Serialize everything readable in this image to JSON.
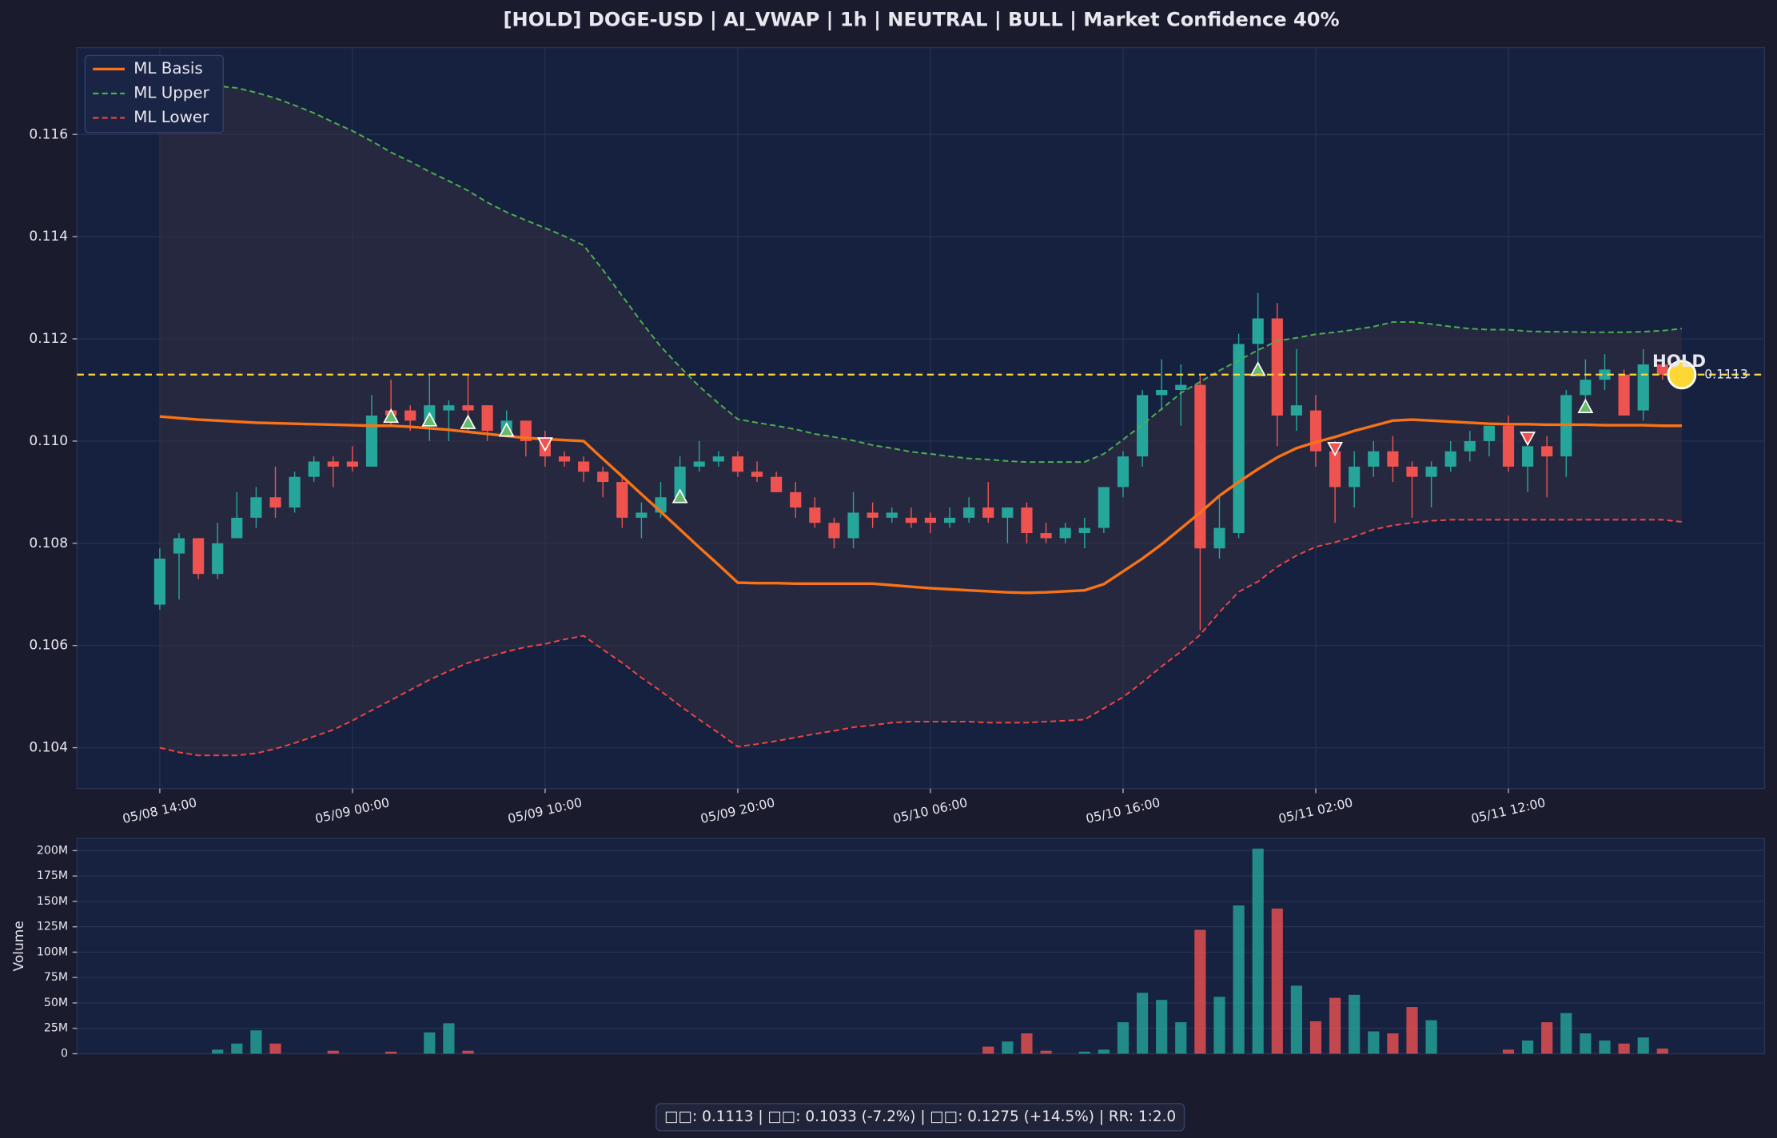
{
  "chart_data": [
    {
      "type": "candlestick",
      "title": "[HOLD] DOGE-USD  |  AI_VWAP | 1h  |  NEUTRAL | BULL  |  Market Confidence 40%",
      "x": [
        "05/08 14:00",
        "05/08 15:00",
        "05/08 16:00",
        "05/08 17:00",
        "05/08 18:00",
        "05/08 19:00",
        "05/08 20:00",
        "05/08 21:00",
        "05/08 22:00",
        "05/08 23:00",
        "05/09 00:00",
        "05/09 01:00",
        "05/09 02:00",
        "05/09 03:00",
        "05/09 04:00",
        "05/09 05:00",
        "05/09 06:00",
        "05/09 07:00",
        "05/09 08:00",
        "05/09 09:00",
        "05/09 10:00",
        "05/09 11:00",
        "05/09 12:00",
        "05/09 13:00",
        "05/09 14:00",
        "05/09 15:00",
        "05/09 16:00",
        "05/09 17:00",
        "05/09 18:00",
        "05/09 19:00",
        "05/09 20:00",
        "05/09 21:00",
        "05/09 22:00",
        "05/09 23:00",
        "05/10 00:00",
        "05/10 01:00",
        "05/10 02:00",
        "05/10 03:00",
        "05/10 04:00",
        "05/10 05:00",
        "05/10 06:00",
        "05/10 07:00",
        "05/10 08:00",
        "05/10 09:00",
        "05/10 10:00",
        "05/10 11:00",
        "05/10 12:00",
        "05/10 13:00",
        "05/10 14:00",
        "05/10 15:00",
        "05/10 16:00",
        "05/10 17:00",
        "05/10 18:00",
        "05/10 19:00",
        "05/10 20:00",
        "05/10 21:00",
        "05/10 22:00",
        "05/10 23:00",
        "05/11 00:00",
        "05/11 01:00",
        "05/11 02:00",
        "05/11 03:00",
        "05/11 04:00",
        "05/11 05:00",
        "05/11 06:00",
        "05/11 07:00",
        "05/11 08:00",
        "05/11 09:00",
        "05/11 10:00",
        "05/11 11:00",
        "05/11 12:00",
        "05/11 13:00",
        "05/11 14:00",
        "05/11 15:00",
        "05/11 16:00",
        "05/11 17:00",
        "05/11 18:00",
        "05/11 19:00",
        "05/11 20:00",
        "05/11 21:00"
      ],
      "open": [
        0.1068,
        0.1078,
        0.1081,
        0.1074,
        0.1081,
        0.1085,
        0.1089,
        0.1087,
        0.1093,
        0.1096,
        0.1096,
        0.1095,
        0.1106,
        0.1106,
        0.1104,
        0.1106,
        0.1107,
        0.1107,
        0.1102,
        0.1104,
        0.11,
        0.1097,
        0.1096,
        0.1094,
        0.1092,
        0.1085,
        0.1086,
        0.1089,
        0.1095,
        0.1096,
        0.1097,
        0.1094,
        0.1093,
        0.109,
        0.1087,
        0.1084,
        0.1081,
        0.1086,
        0.1085,
        0.1085,
        0.1085,
        0.1084,
        0.1085,
        0.1087,
        0.1085,
        0.1087,
        0.1082,
        0.1081,
        0.1082,
        0.1083,
        0.1091,
        0.1097,
        0.1109,
        0.111,
        0.1111,
        0.1079,
        0.1082,
        0.1119,
        0.1124,
        0.1105,
        0.1106,
        0.1098,
        0.1091,
        0.1095,
        0.1098,
        0.1095,
        0.1093,
        0.1095,
        0.1098,
        0.11,
        0.1103,
        0.1095,
        0.1099,
        0.1097,
        0.1109,
        0.1112,
        0.1113,
        0.1106,
        0.1115,
        0.1113
      ],
      "high": [
        0.1079,
        0.1082,
        0.1081,
        0.1084,
        0.109,
        0.1091,
        0.1095,
        0.1094,
        0.1097,
        0.1097,
        0.1099,
        0.1109,
        0.1112,
        0.1107,
        0.1113,
        0.1108,
        0.1113,
        0.1107,
        0.1106,
        0.1104,
        0.1102,
        0.1098,
        0.1097,
        0.1095,
        0.1093,
        0.1088,
        0.1092,
        0.1097,
        0.11,
        0.1098,
        0.1098,
        0.1096,
        0.1094,
        0.1092,
        0.1089,
        0.1085,
        0.109,
        0.1088,
        0.1087,
        0.1087,
        0.1086,
        0.1087,
        0.1089,
        0.1092,
        0.1087,
        0.1088,
        0.1084,
        0.1084,
        0.1085,
        0.1091,
        0.1098,
        0.111,
        0.1116,
        0.1115,
        0.1113,
        0.1089,
        0.1121,
        0.1129,
        0.1127,
        0.1118,
        0.1109,
        0.11,
        0.1098,
        0.11,
        0.1101,
        0.1096,
        0.1096,
        0.11,
        0.1102,
        0.1103,
        0.1105,
        0.1099,
        0.1101,
        0.111,
        0.1116,
        0.1117,
        0.1114,
        0.1118,
        0.1116,
        0.1114
      ],
      "low": [
        0.1067,
        0.1069,
        0.1073,
        0.1073,
        0.1081,
        0.1083,
        0.1085,
        0.1086,
        0.1092,
        0.1091,
        0.1094,
        0.1095,
        0.1103,
        0.1102,
        0.11,
        0.11,
        0.1102,
        0.11,
        0.1101,
        0.1097,
        0.1095,
        0.1095,
        0.1092,
        0.1089,
        0.1083,
        0.1081,
        0.1085,
        0.1088,
        0.1094,
        0.1095,
        0.1093,
        0.1092,
        0.109,
        0.1085,
        0.1083,
        0.1079,
        0.1079,
        0.1083,
        0.1084,
        0.1083,
        0.1082,
        0.1083,
        0.1084,
        0.1084,
        0.108,
        0.108,
        0.108,
        0.108,
        0.1079,
        0.1082,
        0.1089,
        0.1095,
        0.1106,
        0.1103,
        0.1063,
        0.1077,
        0.1081,
        0.1115,
        0.1099,
        0.1102,
        0.1095,
        0.1084,
        0.1087,
        0.1093,
        0.1092,
        0.1085,
        0.1087,
        0.1094,
        0.1096,
        0.1097,
        0.1094,
        0.109,
        0.1089,
        0.1093,
        0.1106,
        0.111,
        0.1105,
        0.1104,
        0.1112,
        0.1112
      ],
      "close": [
        0.1077,
        0.1081,
        0.1074,
        0.108,
        0.1085,
        0.1089,
        0.1087,
        0.1093,
        0.1096,
        0.1095,
        0.1095,
        0.1105,
        0.1105,
        0.1104,
        0.1107,
        0.1107,
        0.1106,
        0.1102,
        0.1104,
        0.11,
        0.1097,
        0.1096,
        0.1094,
        0.1092,
        0.1085,
        0.1086,
        0.1089,
        0.1095,
        0.1096,
        0.1097,
        0.1094,
        0.1093,
        0.109,
        0.1087,
        0.1084,
        0.1081,
        0.1086,
        0.1085,
        0.1086,
        0.1084,
        0.1084,
        0.1085,
        0.1087,
        0.1085,
        0.1087,
        0.1082,
        0.1081,
        0.1083,
        0.1083,
        0.1091,
        0.1097,
        0.1109,
        0.111,
        0.1111,
        0.1079,
        0.1083,
        0.1119,
        0.1124,
        0.1105,
        0.1107,
        0.1098,
        0.1091,
        0.1095,
        0.1098,
        0.1095,
        0.1093,
        0.1095,
        0.1098,
        0.11,
        0.1103,
        0.1095,
        0.1099,
        0.1097,
        0.1109,
        0.1112,
        0.1114,
        0.1105,
        0.1115,
        0.1113,
        0.1113
      ],
      "up_color": "#26a69a",
      "down_color": "#ef5350",
      "series": [
        {
          "name": "ML Basis",
          "color": "#f97316",
          "dash": false,
          "values": [
            0.11048,
            0.11045,
            0.11042,
            0.1104,
            0.11038,
            0.11036,
            0.11035,
            0.11034,
            0.11033,
            0.11032,
            0.11031,
            0.1103,
            0.1103,
            0.11028,
            0.11025,
            0.11022,
            0.11018,
            0.11014,
            0.1101,
            0.11006,
            0.11004,
            0.11002,
            0.11,
            0.10965,
            0.10931,
            0.10896,
            0.10862,
            0.10827,
            0.10792,
            0.10758,
            0.10723,
            0.10722,
            0.10722,
            0.10721,
            0.10721,
            0.10721,
            0.10721,
            0.10721,
            0.10718,
            0.10715,
            0.10712,
            0.1071,
            0.10708,
            0.10706,
            0.10704,
            0.10703,
            0.10704,
            0.10706,
            0.10708,
            0.1072,
            0.10745,
            0.1077,
            0.10798,
            0.10829,
            0.1086,
            0.10893,
            0.1092,
            0.10945,
            0.10968,
            0.10986,
            0.10998,
            0.11008,
            0.1102,
            0.1103,
            0.1104,
            0.11042,
            0.1104,
            0.11038,
            0.11036,
            0.11034,
            0.11033,
            0.11033,
            0.11032,
            0.11032,
            0.11032,
            0.11031,
            0.11031,
            0.11031,
            0.1103,
            0.1103
          ]
        },
        {
          "name": "ML Upper",
          "color": "#4caf50",
          "dash": true,
          "values": [
            0.11704,
            0.11704,
            0.11699,
            0.11695,
            0.11691,
            0.11682,
            0.11671,
            0.11657,
            0.11642,
            0.11624,
            0.11607,
            0.11587,
            0.11565,
            0.11547,
            0.11527,
            0.11509,
            0.1149,
            0.11467,
            0.11448,
            0.11432,
            0.11417,
            0.11401,
            0.11383,
            0.11335,
            0.11284,
            0.11233,
            0.11185,
            0.11145,
            0.11107,
            0.11074,
            0.11043,
            0.11036,
            0.1103,
            0.11023,
            0.11014,
            0.11008,
            0.11001,
            0.10992,
            0.10986,
            0.10979,
            0.10975,
            0.1097,
            0.10966,
            0.10964,
            0.10961,
            0.10959,
            0.10959,
            0.10959,
            0.10959,
            0.10975,
            0.11003,
            0.11032,
            0.11063,
            0.11094,
            0.11116,
            0.11138,
            0.11158,
            0.11178,
            0.11196,
            0.11202,
            0.11209,
            0.11213,
            0.11218,
            0.11224,
            0.11233,
            0.11233,
            0.11229,
            0.11224,
            0.1122,
            0.11218,
            0.11218,
            0.11215,
            0.11214,
            0.11214,
            0.11213,
            0.11213,
            0.11213,
            0.11214,
            0.11216,
            0.1122
          ]
        },
        {
          "name": "ML Lower",
          "color": "#ef4444",
          "dash": true,
          "values": [
            0.104,
            0.10391,
            0.10385,
            0.10385,
            0.10385,
            0.10389,
            0.10398,
            0.10409,
            0.10422,
            0.10435,
            0.10453,
            0.10473,
            0.10493,
            0.10513,
            0.10533,
            0.1055,
            0.10566,
            0.10577,
            0.10588,
            0.10597,
            0.10603,
            0.10612,
            0.10619,
            0.10592,
            0.10566,
            0.10537,
            0.10511,
            0.10482,
            0.10455,
            0.10429,
            0.10402,
            0.10407,
            0.10413,
            0.1042,
            0.10427,
            0.10433,
            0.1044,
            0.10444,
            0.10449,
            0.10451,
            0.10451,
            0.10451,
            0.10451,
            0.10449,
            0.10449,
            0.10449,
            0.10451,
            0.10453,
            0.10455,
            0.10477,
            0.10499,
            0.10528,
            0.10559,
            0.10588,
            0.10621,
            0.10665,
            0.10705,
            0.10725,
            0.10754,
            0.10776,
            0.10793,
            0.10802,
            0.10813,
            0.10827,
            0.10835,
            0.1084,
            0.10844,
            0.10846,
            0.10846,
            0.10846,
            0.10846,
            0.10846,
            0.10846,
            0.10846,
            0.10846,
            0.10846,
            0.10846,
            0.10846,
            0.10846,
            0.10842
          ]
        }
      ],
      "buy_signals": {
        "x": [
          "05/09 02:00",
          "05/09 04:00",
          "05/09 06:00",
          "05/09 08:00",
          "05/09 17:00",
          "05/10 23:00",
          "05/11 16:00"
        ],
        "values": [
          0.11048,
          0.11041,
          0.11036,
          0.11021,
          0.10891,
          0.1114,
          0.11067
        ],
        "color": "#66bb6a"
      },
      "sell_signals": {
        "x": [
          "05/09 10:00",
          "05/11 03:00",
          "05/11 13:00"
        ],
        "values": [
          0.10995,
          0.10986,
          0.11006
        ],
        "color": "#ef5350"
      },
      "signal_label": "HOLD",
      "current_price": 0.1113,
      "marker_color": "#fdd835",
      "ylim": [
        0.1032,
        0.1177
      ],
      "yticks": [
        0.104,
        0.106,
        0.108,
        {
          "value": 0.11,
          "label": "0.110"
        },
        0.112,
        0.114,
        0.116
      ],
      "xticks": [
        "05/08 14:00",
        "05/09 00:00",
        "05/09 10:00",
        "05/09 20:00",
        "05/10 06:00",
        "05/10 16:00",
        "05/11 02:00",
        "05/11 12:00"
      ],
      "legend": "upper left",
      "grid": true
    },
    {
      "type": "bar",
      "ylabel": "Volume",
      "values": [
        0,
        0,
        0,
        4000000,
        10000000,
        23000000,
        10000000,
        0,
        0,
        3000000,
        0,
        0,
        2000000,
        0,
        21000000,
        30000000,
        3000000,
        0,
        0,
        0,
        0,
        0,
        0,
        0,
        0,
        0,
        0,
        0,
        0,
        0,
        0,
        0,
        0,
        0,
        0,
        0,
        0,
        0,
        0,
        0,
        0,
        0,
        0,
        7000000,
        12000000,
        20000000,
        3000000,
        0,
        2000000,
        4000000,
        31000000,
        60000000,
        53000000,
        31000000,
        122000000,
        56000000,
        146000000,
        202000000,
        143000000,
        67000000,
        32000000,
        55000000,
        58000000,
        22000000,
        20000000,
        46000000,
        33000000,
        0,
        0,
        0,
        4000000,
        13000000,
        31000000,
        40000000,
        20000000,
        13000000,
        10000000,
        16000000,
        5000000,
        0
      ],
      "ylim": [
        0,
        212000000
      ],
      "yticks": [
        0,
        {
          "value": 25000000,
          "label": "25M"
        },
        {
          "value": 50000000,
          "label": "50M"
        },
        {
          "value": 75000000,
          "label": "75M"
        },
        {
          "value": 100000000,
          "label": "100M"
        },
        {
          "value": 125000000,
          "label": "125M"
        },
        {
          "value": 150000000,
          "label": "150M"
        },
        {
          "value": 175000000,
          "label": "175M"
        },
        {
          "value": 200000000,
          "label": "200M"
        }
      ],
      "grid": true
    }
  ],
  "footer": "□□: 0.1113  |  □□: 0.1033 (-7.2%)  |  □□: 0.1275 (+14.5%)  |  RR: 1:2.0"
}
